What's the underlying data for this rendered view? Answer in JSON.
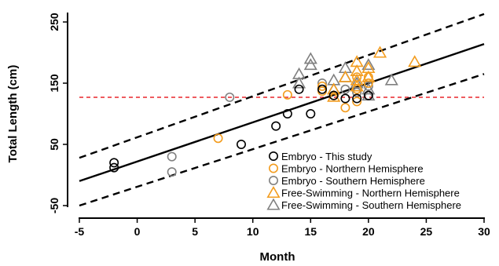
{
  "chart_data": {
    "type": "scatter",
    "xlabel": "Month",
    "ylabel": "Total Length (cm)",
    "xlim": [
      -5,
      30
    ],
    "ylim": [
      -50,
      250
    ],
    "xticks": [
      -5,
      0,
      5,
      10,
      15,
      20,
      25,
      30
    ],
    "yticks": [
      -50,
      50,
      150,
      250
    ],
    "xtick_labels": [
      "-5",
      "0",
      "5",
      "10",
      "15",
      "20",
      "25",
      "30"
    ],
    "ytick_labels": [
      "-50",
      "50",
      "150",
      "250"
    ],
    "grid": false,
    "legend_position": "bottom-right",
    "colors": {
      "black": "#000000",
      "orange": "#f39c1e",
      "gray": "#808080",
      "red": "#e8262b"
    },
    "series": [
      {
        "name": "Embryo - This study",
        "marker": "circle",
        "color": "#000000",
        "points": [
          [
            -2,
            20
          ],
          [
            -2,
            12
          ],
          [
            9,
            50
          ],
          [
            12,
            80
          ],
          [
            13,
            100
          ],
          [
            14,
            140
          ],
          [
            15,
            100
          ],
          [
            16,
            140
          ],
          [
            17,
            130
          ],
          [
            18,
            125
          ],
          [
            19,
            125
          ],
          [
            20,
            130
          ]
        ]
      },
      {
        "name": "Embryo - Northern Hemisphere",
        "marker": "circle",
        "color": "#f39c1e",
        "points": [
          [
            7,
            60
          ],
          [
            13,
            131
          ],
          [
            16,
            145
          ],
          [
            16,
            137
          ],
          [
            17,
            130
          ],
          [
            18,
            110
          ],
          [
            19,
            120
          ],
          [
            19,
            140
          ],
          [
            19,
            160
          ],
          [
            20,
            160
          ],
          [
            20,
            150
          ]
        ]
      },
      {
        "name": "Embryo - Southern Hemisphere",
        "marker": "circle",
        "color": "#808080",
        "points": [
          [
            3,
            30
          ],
          [
            3,
            5
          ],
          [
            8,
            127
          ],
          [
            16,
            150
          ],
          [
            18,
            140
          ],
          [
            19,
            135
          ],
          [
            20,
            145
          ]
        ]
      },
      {
        "name": "Free-Swimming - Northern Hemisphere",
        "marker": "triangle",
        "color": "#f39c1e",
        "points": [
          [
            17,
            128
          ],
          [
            17,
            140
          ],
          [
            18,
            160
          ],
          [
            19,
            185
          ],
          [
            19,
            170
          ],
          [
            19,
            155
          ],
          [
            19,
            145
          ],
          [
            20,
            175
          ],
          [
            20,
            160
          ],
          [
            21,
            200
          ],
          [
            24,
            185
          ]
        ]
      },
      {
        "name": "Free-Swimming - Southern Hemisphere",
        "marker": "triangle",
        "color": "#808080",
        "points": [
          [
            14,
            150
          ],
          [
            14,
            165
          ],
          [
            15,
            180
          ],
          [
            15,
            190
          ],
          [
            17,
            140
          ],
          [
            17,
            155
          ],
          [
            18,
            175
          ],
          [
            18,
            160
          ],
          [
            19,
            150
          ],
          [
            20,
            140
          ],
          [
            20,
            180
          ],
          [
            20,
            130
          ],
          [
            22,
            155
          ]
        ]
      }
    ],
    "regression": {
      "x": [
        -5,
        30
      ],
      "y": [
        -10,
        214
      ]
    },
    "confidence_band": {
      "upper": {
        "x": [
          -5,
          30
        ],
        "y": [
          28,
          263
        ]
      },
      "lower": {
        "x": [
          -5,
          30
        ],
        "y": [
          -50,
          165
        ]
      }
    },
    "reference_line": {
      "y": 127,
      "x": [
        -5,
        30
      ]
    }
  }
}
